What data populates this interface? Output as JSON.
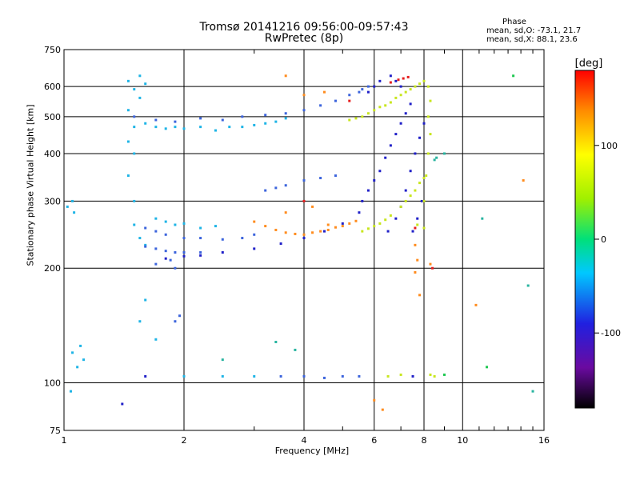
{
  "chart_data": {
    "type": "scatter",
    "title": "Tromsø 20141216 09:56:00-09:57:43",
    "subtitle": "RwPretec (8p)",
    "xlabel": "Frequency [MHz]",
    "ylabel": "Stationary phase Virtual Height [km]",
    "x_scale": "log",
    "y_scale": "log",
    "xlim": [
      1,
      16
    ],
    "ylim": [
      75,
      750
    ],
    "x_ticks": [
      1,
      2,
      4,
      6,
      8,
      10,
      16
    ],
    "y_ticks": [
      75,
      100,
      200,
      300,
      400,
      500,
      600,
      750
    ],
    "grid": true,
    "phase_stats": {
      "label": "Phase",
      "o_line": "mean, sd,O: -73.1, 21.7",
      "x_line": "mean, sd,X:  88.1, 23.6"
    },
    "colorbar": {
      "label": "[deg]",
      "range": [
        -180,
        180
      ],
      "ticks": [
        100,
        0,
        -100
      ]
    },
    "series": [
      {
        "color": "#1eb4e6",
        "points": [
          [
            1.5,
            470
          ],
          [
            1.6,
            480
          ],
          [
            1.7,
            470
          ],
          [
            1.8,
            465
          ],
          [
            1.9,
            470
          ],
          [
            2.0,
            465
          ],
          [
            2.2,
            470
          ],
          [
            2.4,
            460
          ],
          [
            2.6,
            470
          ],
          [
            2.8,
            470
          ],
          [
            3.0,
            475
          ],
          [
            3.2,
            480
          ],
          [
            3.4,
            485
          ],
          [
            3.6,
            495
          ],
          [
            1.45,
            620
          ],
          [
            1.55,
            640
          ],
          [
            1.6,
            610
          ],
          [
            1.5,
            590
          ],
          [
            1.55,
            560
          ],
          [
            1.45,
            520
          ],
          [
            1.45,
            430
          ],
          [
            1.5,
            400
          ],
          [
            1.45,
            350
          ],
          [
            1.5,
            300
          ],
          [
            1.5,
            260
          ],
          [
            1.55,
            240
          ],
          [
            1.6,
            230
          ],
          [
            1.7,
            270
          ],
          [
            1.8,
            265
          ],
          [
            1.9,
            260
          ],
          [
            2.0,
            262
          ],
          [
            2.2,
            255
          ],
          [
            2.4,
            258
          ],
          [
            1.05,
            120
          ],
          [
            1.1,
            125
          ],
          [
            1.08,
            110
          ],
          [
            1.12,
            115
          ],
          [
            1.02,
            290
          ],
          [
            1.05,
            300
          ],
          [
            1.06,
            280
          ],
          [
            1.04,
            95
          ],
          [
            2.0,
            104
          ],
          [
            2.5,
            104
          ],
          [
            3.0,
            104
          ],
          [
            1.6,
            165
          ],
          [
            1.55,
            145
          ],
          [
            1.7,
            130
          ]
        ]
      },
      {
        "color": "#3c64dc",
        "points": [
          [
            1.5,
            500
          ],
          [
            1.7,
            490
          ],
          [
            1.9,
            485
          ],
          [
            2.2,
            495
          ],
          [
            2.5,
            490
          ],
          [
            2.8,
            500
          ],
          [
            3.2,
            505
          ],
          [
            3.6,
            510
          ],
          [
            4.0,
            520
          ],
          [
            4.4,
            535
          ],
          [
            4.8,
            550
          ],
          [
            5.2,
            570
          ],
          [
            5.6,
            590
          ],
          [
            1.6,
            255
          ],
          [
            1.7,
            250
          ],
          [
            1.8,
            245
          ],
          [
            2.0,
            240
          ],
          [
            2.2,
            240
          ],
          [
            2.5,
            238
          ],
          [
            2.8,
            240
          ],
          [
            3.0,
            245
          ],
          [
            1.6,
            228
          ],
          [
            1.7,
            225
          ],
          [
            1.8,
            222
          ],
          [
            1.9,
            220
          ],
          [
            2.0,
            220
          ],
          [
            2.2,
            220
          ],
          [
            1.9,
            200
          ],
          [
            1.7,
            205
          ],
          [
            1.85,
            210
          ],
          [
            1.95,
            150
          ],
          [
            1.9,
            145
          ],
          [
            3.5,
            104
          ],
          [
            4.0,
            104
          ],
          [
            4.5,
            103
          ],
          [
            5.0,
            104
          ],
          [
            5.5,
            104
          ],
          [
            4.0,
            340
          ],
          [
            4.4,
            345
          ],
          [
            4.8,
            350
          ],
          [
            3.6,
            330
          ],
          [
            3.4,
            325
          ],
          [
            3.2,
            320
          ],
          [
            5.5,
            580
          ],
          [
            5.8,
            600
          ]
        ]
      },
      {
        "color": "#2020c8",
        "points": [
          [
            5.6,
            300
          ],
          [
            5.8,
            320
          ],
          [
            6.0,
            340
          ],
          [
            6.2,
            360
          ],
          [
            6.4,
            390
          ],
          [
            6.6,
            420
          ],
          [
            6.8,
            450
          ],
          [
            7.0,
            480
          ],
          [
            7.2,
            510
          ],
          [
            7.4,
            540
          ],
          [
            7.0,
            600
          ],
          [
            6.8,
            620
          ],
          [
            6.6,
            640
          ],
          [
            6.2,
            620
          ],
          [
            6.0,
            600
          ],
          [
            5.8,
            580
          ],
          [
            6.5,
            250
          ],
          [
            6.8,
            270
          ],
          [
            7.0,
            290
          ],
          [
            7.2,
            320
          ],
          [
            7.4,
            360
          ],
          [
            7.6,
            400
          ],
          [
            7.8,
            440
          ],
          [
            8.0,
            480
          ],
          [
            7.5,
            250
          ],
          [
            7.7,
            270
          ],
          [
            7.9,
            300
          ],
          [
            2.5,
            220
          ],
          [
            3.0,
            225
          ],
          [
            3.5,
            232
          ],
          [
            4.0,
            240
          ],
          [
            4.5,
            250
          ],
          [
            5.0,
            262
          ],
          [
            5.5,
            280
          ],
          [
            2.0,
            215
          ],
          [
            2.2,
            216
          ],
          [
            1.8,
            212
          ],
          [
            1.6,
            104
          ],
          [
            1.4,
            88
          ],
          [
            7.5,
            104
          ]
        ]
      },
      {
        "color": "#c8e61e",
        "points": [
          [
            8.0,
            300
          ],
          [
            8.1,
            350
          ],
          [
            8.2,
            400
          ],
          [
            8.3,
            450
          ],
          [
            8.2,
            500
          ],
          [
            8.3,
            550
          ],
          [
            8.2,
            600
          ],
          [
            8.0,
            620
          ],
          [
            7.8,
            610
          ],
          [
            7.6,
            600
          ],
          [
            7.4,
            590
          ],
          [
            7.2,
            580
          ],
          [
            7.0,
            570
          ],
          [
            6.8,
            560
          ],
          [
            6.6,
            545
          ],
          [
            6.4,
            535
          ],
          [
            6.2,
            530
          ],
          [
            6.0,
            520
          ],
          [
            5.8,
            510
          ],
          [
            5.6,
            500
          ],
          [
            5.4,
            495
          ],
          [
            5.2,
            490
          ],
          [
            7.0,
            290
          ],
          [
            7.2,
            300
          ],
          [
            7.4,
            310
          ],
          [
            7.6,
            320
          ],
          [
            7.8,
            335
          ],
          [
            8.0,
            345
          ],
          [
            6.6,
            275
          ],
          [
            6.4,
            268
          ],
          [
            6.2,
            262
          ],
          [
            6.0,
            258
          ],
          [
            5.8,
            254
          ],
          [
            5.6,
            250
          ],
          [
            6.5,
            104
          ],
          [
            7.0,
            105
          ],
          [
            8.3,
            105
          ],
          [
            8.5,
            104
          ],
          [
            8.0,
            255
          ],
          [
            7.7,
            260
          ]
        ]
      },
      {
        "color": "#ff8c1e",
        "points": [
          [
            3.0,
            265
          ],
          [
            3.2,
            258
          ],
          [
            3.4,
            252
          ],
          [
            3.6,
            248
          ],
          [
            3.8,
            246
          ],
          [
            4.0,
            245
          ],
          [
            4.2,
            248
          ],
          [
            4.4,
            250
          ],
          [
            4.6,
            252
          ],
          [
            4.8,
            256
          ],
          [
            5.0,
            258
          ],
          [
            5.2,
            262
          ],
          [
            5.4,
            266
          ],
          [
            3.6,
            280
          ],
          [
            4.2,
            290
          ],
          [
            4.6,
            260
          ],
          [
            6.0,
            90
          ],
          [
            6.3,
            85
          ],
          [
            7.6,
            230
          ],
          [
            7.7,
            210
          ],
          [
            7.6,
            195
          ],
          [
            7.8,
            170
          ],
          [
            4.0,
            570
          ],
          [
            4.5,
            580
          ],
          [
            8.3,
            205
          ],
          [
            10.8,
            160
          ],
          [
            14.2,
            340
          ],
          [
            3.6,
            640
          ]
        ]
      },
      {
        "color": "#e61e1e",
        "points": [
          [
            7.3,
            635
          ],
          [
            7.1,
            630
          ],
          [
            6.9,
            625
          ],
          [
            6.6,
            615
          ],
          [
            5.2,
            550
          ],
          [
            4.0,
            300
          ],
          [
            8.4,
            200
          ],
          [
            7.6,
            255
          ]
        ]
      },
      {
        "color": "#1ec850",
        "points": [
          [
            13.4,
            640
          ],
          [
            11.5,
            110
          ],
          [
            9.0,
            105
          ]
        ]
      },
      {
        "color": "#28b4a0",
        "points": [
          [
            14.6,
            180
          ],
          [
            15.0,
            95
          ],
          [
            11.2,
            270
          ],
          [
            8.5,
            385
          ],
          [
            8.6,
            390
          ],
          [
            9.0,
            400
          ],
          [
            3.8,
            122
          ],
          [
            3.4,
            128
          ],
          [
            2.5,
            115
          ]
        ]
      }
    ]
  }
}
